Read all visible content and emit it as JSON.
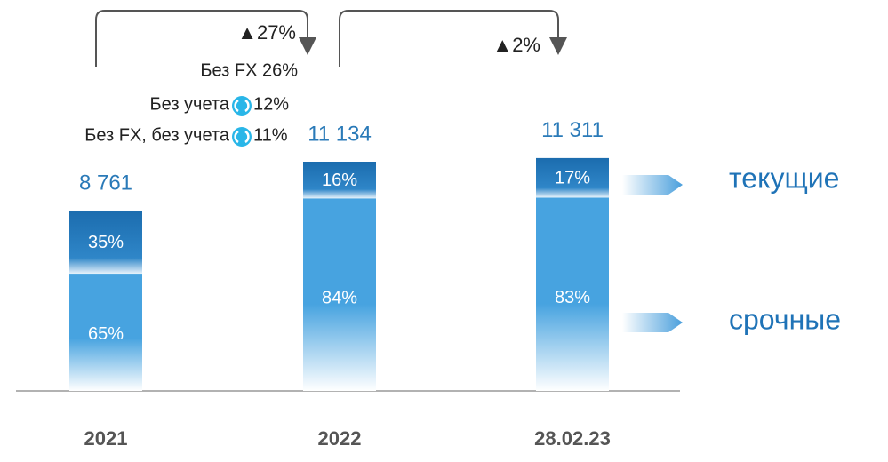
{
  "chart_data": {
    "type": "bar",
    "categories": [
      "2021",
      "2022",
      "28.02.23"
    ],
    "values": [
      8761,
      11134,
      11311
    ],
    "value_labels": [
      "8 761",
      "11 134",
      "11 311"
    ],
    "series": [
      {
        "name": "срочные",
        "color": "#47a3e0",
        "values": [
          65,
          84,
          83
        ],
        "value_labels": [
          "65%",
          "84%",
          "83%"
        ]
      },
      {
        "name": "текущие",
        "color": "#1b6cae",
        "values": [
          35,
          16,
          17
        ],
        "value_labels": [
          "35%",
          "16%",
          "17%"
        ]
      }
    ],
    "growth": [
      {
        "label": "▲27%"
      },
      {
        "label": "▲2%"
      }
    ],
    "notes": [
      {
        "text": "Без FX 26%"
      },
      {
        "text": "Без учета",
        "value": "12%"
      },
      {
        "text": "Без FX, без учета",
        "value": "11%"
      }
    ]
  }
}
